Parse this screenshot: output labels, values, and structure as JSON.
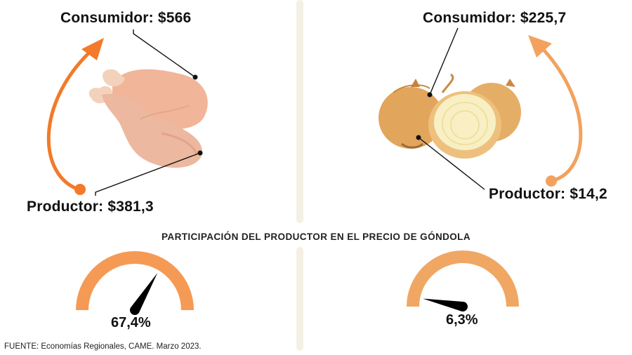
{
  "left_panel": {
    "product_icon": "chicken-legs-icon",
    "consumer_label": "Consumidor: $566",
    "producer_label": "Productor: $381,3",
    "gauge_value_label": "67,4%",
    "gauge_fraction": 0.674
  },
  "right_panel": {
    "product_icon": "onions-icon",
    "consumer_label": "Consumidor: $225,7",
    "producer_label": "Productor: $14,2",
    "gauge_value_label": "6,3%",
    "gauge_fraction": 0.063
  },
  "subtitle": "PARTICIPACIÓN DEL PRODUCTOR EN EL PRECIO DE GÓNDOLA",
  "source": "FUENTE: Economías Regionales, CAME. Marzo 2023.",
  "colors": {
    "arrow_left": "#f27a2a",
    "arrow_right": "#f2a25e",
    "gauge_left": "#f59a55",
    "gauge_right": "#f0a764",
    "divider": "#f4f0e3"
  }
}
